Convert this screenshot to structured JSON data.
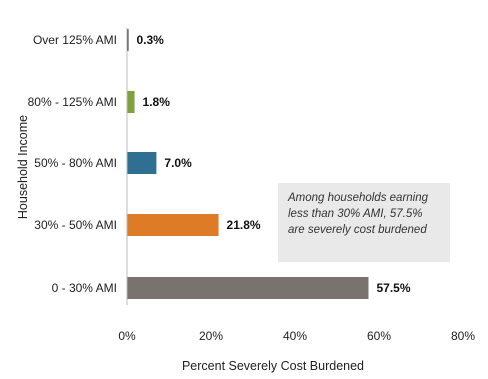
{
  "chart_data": {
    "type": "bar",
    "orientation": "horizontal",
    "categories": [
      "Over 125% AMI",
      "80% - 125% AMI",
      "50% - 80% AMI",
      "30% - 50% AMI",
      "0 - 30% AMI"
    ],
    "values": [
      0.3,
      1.8,
      7.0,
      21.8,
      57.5
    ],
    "value_labels": [
      "0.3%",
      "1.8%",
      "7.0%",
      "21.8%",
      "57.5%"
    ],
    "colors": [
      "#333333",
      "#7ea33e",
      "#2e6f92",
      "#dd7b27",
      "#7a726e"
    ],
    "xlabel": "Percent Severely Cost Burdened",
    "ylabel": "Household Income",
    "xlim": [
      0,
      80
    ],
    "xticks": [
      0,
      20,
      40,
      60,
      80
    ],
    "xtick_labels": [
      "0%",
      "20%",
      "40%",
      "60%",
      "80%"
    ],
    "grid": false,
    "annotation": "Among households earning less than 30% AMI, 57.5% are severely cost burdened"
  }
}
